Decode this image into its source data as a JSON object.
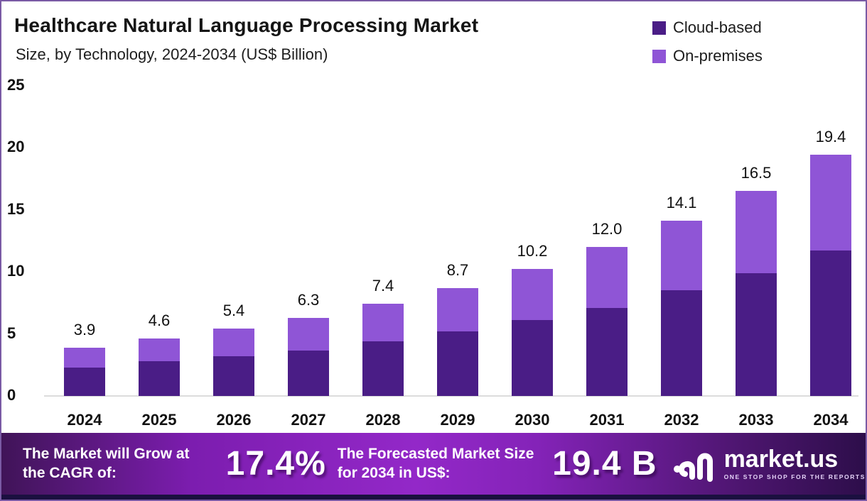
{
  "header": {
    "title": "Healthcare Natural Language Processing Market",
    "subtitle": "Size, by Technology, 2024-2034 (US$ Billion)"
  },
  "colors": {
    "cloud_based": "#4a1d86",
    "on_premises": "#8f55d6",
    "banner_mid": "#9328c8",
    "border": "#7a5aa5"
  },
  "chart_data": {
    "type": "bar",
    "stacked": true,
    "title": "Healthcare Natural Language Processing Market Size, by Technology, 2024-2034 (US$ Billion)",
    "categories": [
      "2024",
      "2025",
      "2026",
      "2027",
      "2028",
      "2029",
      "2030",
      "2031",
      "2032",
      "2033",
      "2034"
    ],
    "series": [
      {
        "name": "Cloud-based",
        "color": "#4a1d86",
        "values": [
          2.3,
          2.8,
          3.2,
          3.7,
          4.4,
          5.2,
          6.1,
          7.1,
          8.5,
          9.9,
          11.7
        ]
      },
      {
        "name": "On-premises",
        "color": "#8f55d6",
        "values": [
          1.6,
          1.8,
          2.2,
          2.6,
          3.0,
          3.5,
          4.1,
          4.9,
          5.6,
          6.6,
          7.7
        ]
      }
    ],
    "totals": [
      3.9,
      4.6,
      5.4,
      6.3,
      7.4,
      8.7,
      10.2,
      12.0,
      14.1,
      16.5,
      19.4
    ],
    "total_labels": [
      "3.9",
      "4.6",
      "5.4",
      "6.3",
      "7.4",
      "8.7",
      "10.2",
      "12.0",
      "14.1",
      "16.5",
      "19.4"
    ],
    "xlabel": "",
    "ylabel": "",
    "ylim": [
      0,
      25
    ],
    "yticks": [
      0,
      5,
      10,
      15,
      20,
      25
    ],
    "grid": false,
    "legend_position": "top-right"
  },
  "banner": {
    "cagr_label": "The Market will Grow at the CAGR of:",
    "cagr_value": "17.4%",
    "forecast_label": "The Forecasted Market Size for 2034 in US$:",
    "forecast_value": "19.4 B",
    "logo_name": "market.us",
    "logo_tagline": "ONE STOP SHOP FOR THE REPORTS"
  }
}
